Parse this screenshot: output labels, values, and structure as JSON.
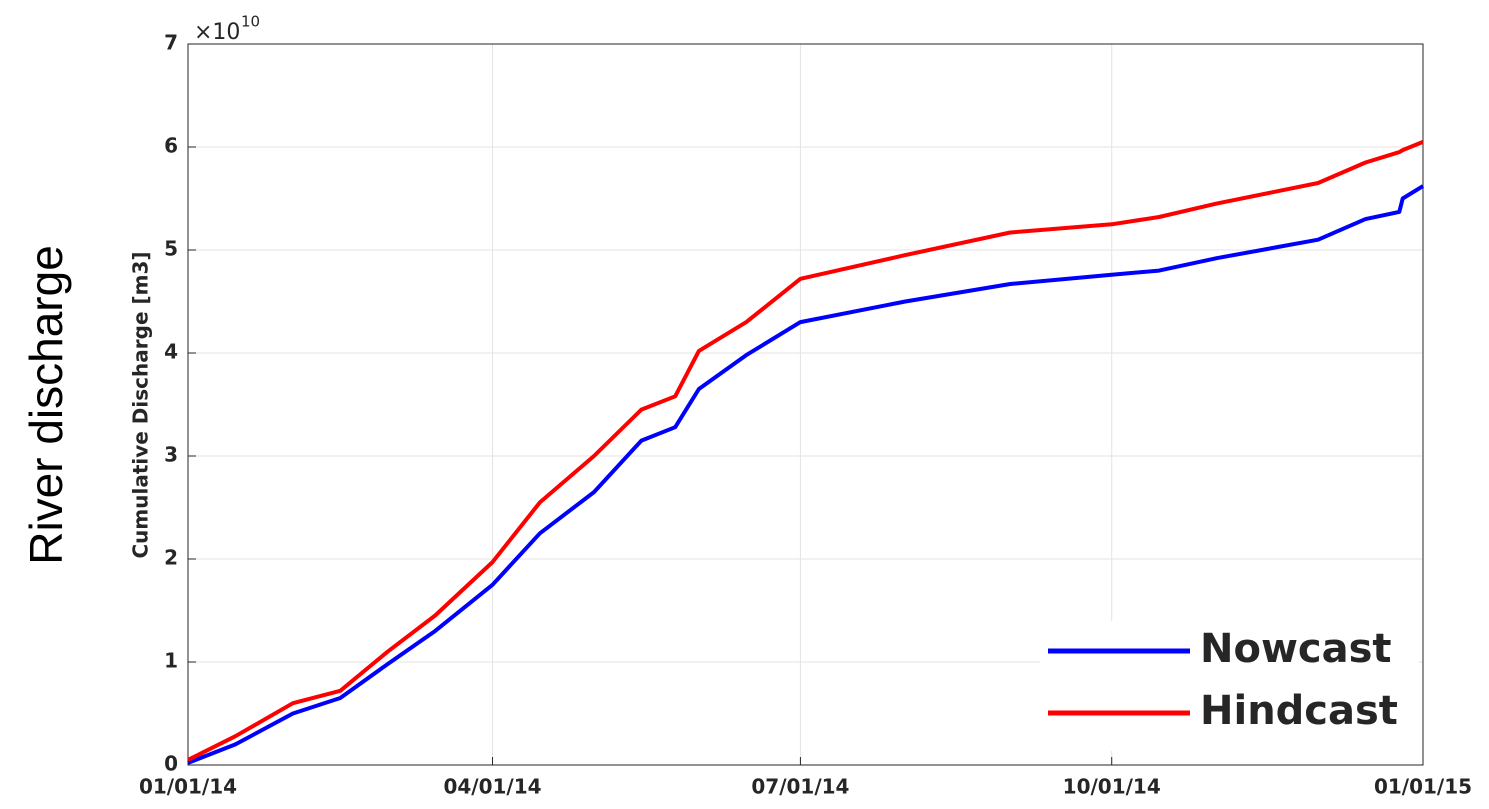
{
  "chart_data": {
    "type": "line",
    "side_label": "River discharge",
    "ylabel": "Cumulative Discharge [m3]",
    "y_multiplier": {
      "base": "×10",
      "exponent": "10"
    },
    "x": [
      "2014-01-01",
      "2014-01-15",
      "2014-02-01",
      "2014-02-15",
      "2014-03-01",
      "2014-03-15",
      "2014-04-01",
      "2014-04-15",
      "2014-05-01",
      "2014-05-15",
      "2014-05-25",
      "2014-06-01",
      "2014-06-15",
      "2014-07-01",
      "2014-08-01",
      "2014-09-01",
      "2014-10-01",
      "2014-10-15",
      "2014-11-01",
      "2014-12-01",
      "2014-12-15",
      "2014-12-25",
      "2014-12-26",
      "2015-01-01"
    ],
    "series": [
      {
        "name": "Nowcast",
        "color": "#0000ff",
        "values": [
          0.02,
          0.2,
          0.5,
          0.65,
          0.98,
          1.3,
          1.75,
          2.25,
          2.65,
          3.15,
          3.28,
          3.65,
          3.98,
          4.3,
          4.5,
          4.67,
          4.76,
          4.8,
          4.92,
          5.1,
          5.3,
          5.37,
          5.5,
          5.62
        ]
      },
      {
        "name": "Hindcast",
        "color": "#ff0000",
        "values": [
          0.05,
          0.28,
          0.6,
          0.72,
          1.1,
          1.45,
          1.97,
          2.55,
          3.0,
          3.45,
          3.58,
          4.02,
          4.3,
          4.72,
          4.95,
          5.17,
          5.25,
          5.32,
          5.45,
          5.65,
          5.85,
          5.95,
          5.97,
          6.05
        ]
      }
    ],
    "xlim": [
      "2014-01-01",
      "2015-01-01"
    ],
    "xticks": [
      {
        "value": "2014-01-01",
        "label": "01/01/14"
      },
      {
        "value": "2014-04-01",
        "label": "04/01/14"
      },
      {
        "value": "2014-07-01",
        "label": "07/01/14"
      },
      {
        "value": "2014-10-01",
        "label": "10/01/14"
      },
      {
        "value": "2015-01-01",
        "label": "01/01/15"
      }
    ],
    "ylim": [
      0,
      7
    ],
    "yticks": [
      0,
      1,
      2,
      3,
      4,
      5,
      6,
      7
    ],
    "grid": true,
    "legend": "lower right"
  }
}
